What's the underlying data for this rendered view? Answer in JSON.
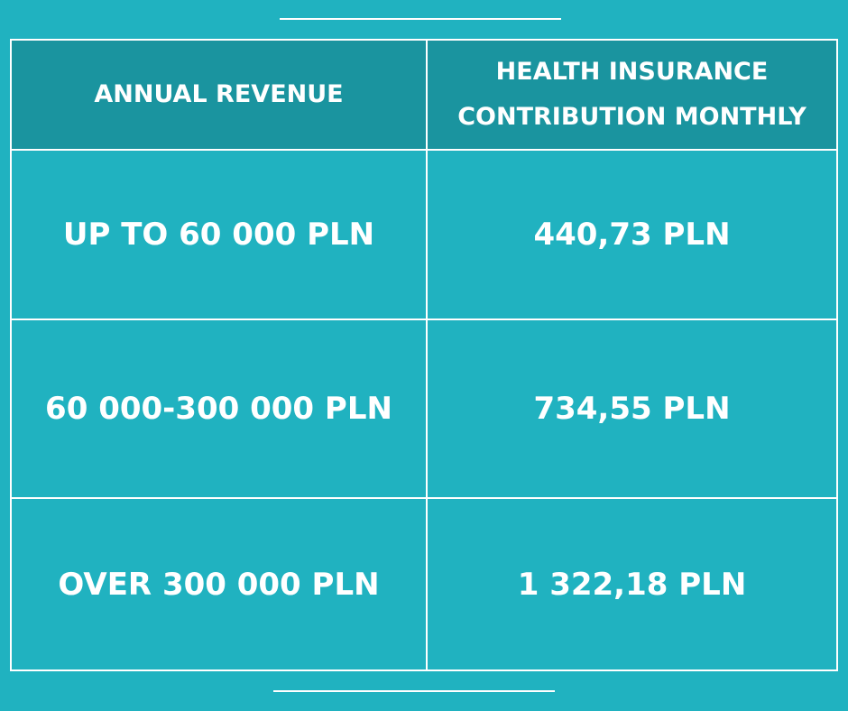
{
  "table": {
    "header": {
      "col1": "ANNUAL REVENUE",
      "col2_line1": "HEALTH INSURANCE",
      "col2_line2": "CONTRIBUTION MONTHLY"
    },
    "rows": [
      {
        "revenue": "UP TO 60 000 PLN",
        "contribution": "440,73 PLN"
      },
      {
        "revenue": "60 000-300 000 PLN",
        "contribution": "734,55 PLN"
      },
      {
        "revenue": "OVER 300 000 PLN",
        "contribution": "1 322,18 PLN"
      }
    ]
  },
  "colors": {
    "background": "#20b2c0",
    "header_background": "#1a949f",
    "lines": "#ffffff"
  }
}
